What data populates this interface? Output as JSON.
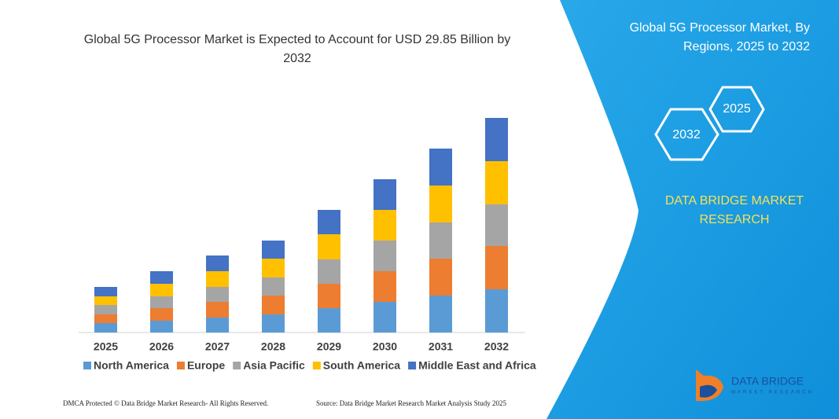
{
  "chart_data": {
    "type": "stacked_bar",
    "title": [
      "Global 5G Processor Market is Expected to Account for USD 29.85 Billion by",
      "2032"
    ],
    "categories": [
      "2025",
      "2026",
      "2027",
      "2028",
      "2029",
      "2030",
      "2031",
      "2032"
    ],
    "series": [
      {
        "name": "North America",
        "color": "#5b9bd5",
        "values": [
          12,
          15,
          19,
          23,
          31,
          39,
          47,
          55
        ]
      },
      {
        "name": "Europe",
        "color": "#ed7d31",
        "values": [
          11,
          16,
          20,
          24,
          31,
          39,
          47,
          55
        ]
      },
      {
        "name": "Asia Pacific",
        "color": "#a5a5a5",
        "values": [
          12,
          15,
          19,
          23,
          31,
          39,
          46,
          53
        ]
      },
      {
        "name": "South America",
        "color": "#ffc000",
        "values": [
          11,
          16,
          20,
          24,
          32,
          39,
          47,
          55
        ]
      },
      {
        "name": "Middle East and Africa",
        "color": "#4472c4",
        "values": [
          12,
          16,
          20,
          23,
          31,
          39,
          47,
          55
        ]
      }
    ],
    "legend": "bottom"
  },
  "panel": {
    "title": [
      "Global 5G Processor Market, By",
      "Regions, 2025 to 2032"
    ],
    "hexagons": [
      "2032",
      "2025"
    ],
    "brand": [
      "DATA BRIDGE MARKET",
      "RESEARCH"
    ]
  },
  "logo": {
    "name": "DATA BRIDGE",
    "tagline": "MARKET RESEARCH"
  },
  "footer": {
    "left": "DMCA Protected © Data Bridge Market Research-  All Rights Reserved.",
    "right": "Source: Data Bridge Market Research  Market Analysis Study 2025"
  }
}
